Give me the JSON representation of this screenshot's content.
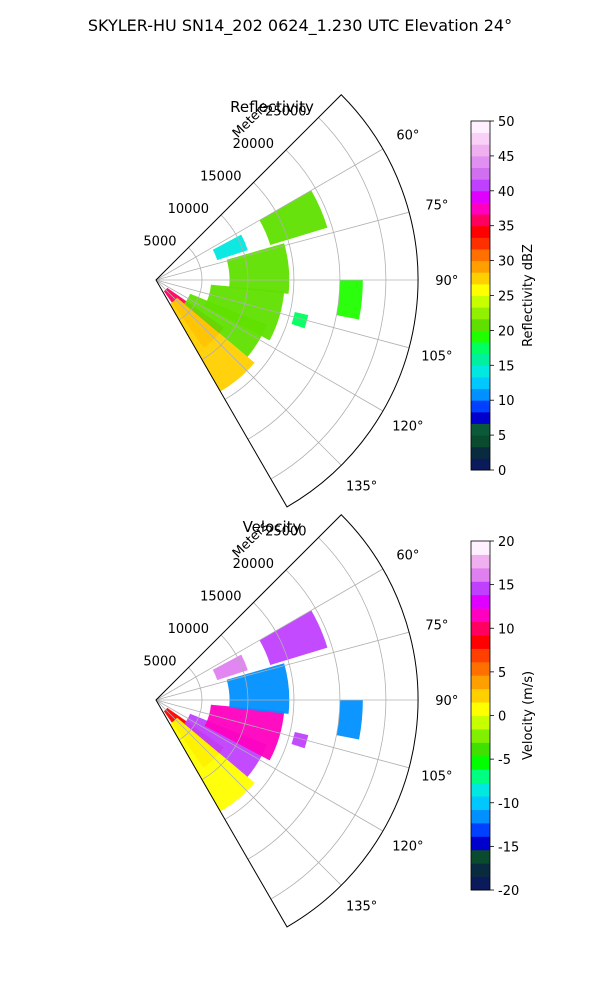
{
  "figure": {
    "title": "SKYLER-HU  SN14_202  0624_1.230 UTC Elevation 24°"
  },
  "chart_data": [
    {
      "type": "heatmap",
      "subtype": "polar-sector",
      "title": "Reflectivity",
      "range_label": "Meters",
      "range_ticks": [
        5000,
        10000,
        15000,
        20000,
        25000
      ],
      "range_max": 28500,
      "azimuth_range_deg": [
        45,
        150
      ],
      "azimuth_ticks": [
        60,
        75,
        90,
        105,
        120,
        135
      ],
      "grid": true,
      "colorbar": {
        "label": "Reflectivity dBZ",
        "min": 0,
        "max": 50,
        "ticks": [
          0,
          5,
          10,
          15,
          20,
          25,
          30,
          35,
          40,
          45,
          50
        ],
        "colors": [
          "#0b1a5a",
          "#0a2a40",
          "#0a4a2e",
          "#0a5a3a",
          "#0000cc",
          "#0040ff",
          "#0090ff",
          "#00c8ff",
          "#00e8e0",
          "#00f0a0",
          "#00ff60",
          "#20ff00",
          "#60e000",
          "#90f000",
          "#c8ff00",
          "#ffff00",
          "#ffd000",
          "#ffa000",
          "#ff7000",
          "#ff3000",
          "#ff0000",
          "#ff0060",
          "#ff00c0",
          "#e000ff",
          "#c040ff",
          "#d070f0",
          "#e090f0",
          "#f0b0f0",
          "#f8d0f8",
          "#fff0ff"
        ]
      },
      "echoes": [
        {
          "az_from": 125,
          "az_to": 145,
          "r_from": 1500,
          "r_to": 9000,
          "value": 36
        },
        {
          "az_from": 130,
          "az_to": 150,
          "r_from": 3000,
          "r_to": 14000,
          "value": 27
        },
        {
          "az_from": 112,
          "az_to": 130,
          "r_from": 4000,
          "r_to": 13000,
          "value": 21
        },
        {
          "az_from": 95,
          "az_to": 118,
          "r_from": 6000,
          "r_to": 14000,
          "value": 20
        },
        {
          "az_from": 74,
          "az_to": 96,
          "r_from": 8000,
          "r_to": 14500,
          "value": 21
        },
        {
          "az_from": 60,
          "az_to": 73,
          "r_from": 13000,
          "r_to": 19500,
          "value": 20
        },
        {
          "az_from": 62,
          "az_to": 72,
          "r_from": 7000,
          "r_to": 10500,
          "value": 14
        },
        {
          "az_from": 90,
          "az_to": 101,
          "r_from": 20000,
          "r_to": 22500,
          "value": 19
        },
        {
          "az_from": 103,
          "az_to": 108,
          "r_from": 15500,
          "r_to": 17000,
          "value": 18
        }
      ]
    },
    {
      "type": "heatmap",
      "subtype": "polar-sector",
      "title": "Velocity",
      "range_label": "Meters",
      "range_ticks": [
        5000,
        10000,
        15000,
        20000,
        25000
      ],
      "range_max": 28500,
      "azimuth_range_deg": [
        45,
        150
      ],
      "azimuth_ticks": [
        60,
        75,
        90,
        105,
        120,
        135
      ],
      "grid": true,
      "colorbar": {
        "label": "Velocity (m/s)",
        "min": -20,
        "max": 20,
        "ticks": [
          -20,
          -15,
          -10,
          -5,
          0,
          5,
          10,
          15,
          20
        ],
        "colors": [
          "#0b1a5a",
          "#0a2a40",
          "#0a4a2e",
          "#0000cc",
          "#0040ff",
          "#0090ff",
          "#00c8ff",
          "#00e8e0",
          "#00ff80",
          "#00ff00",
          "#40e000",
          "#80f000",
          "#c8ff00",
          "#ffff00",
          "#ffd000",
          "#ffa000",
          "#ff7000",
          "#ff4000",
          "#ff0000",
          "#ff0060",
          "#ff00c0",
          "#e000ff",
          "#c040ff",
          "#e080f0",
          "#f0b0f0",
          "#fff0ff"
        ]
      },
      "echoes": [
        {
          "az_from": 125,
          "az_to": 145,
          "r_from": 1500,
          "r_to": 9000,
          "value": 8
        },
        {
          "az_from": 130,
          "az_to": 150,
          "r_from": 3000,
          "r_to": 14000,
          "value": 1
        },
        {
          "az_from": 112,
          "az_to": 130,
          "r_from": 4000,
          "r_to": 13000,
          "value": 14
        },
        {
          "az_from": 95,
          "az_to": 118,
          "r_from": 6000,
          "r_to": 14000,
          "value": 11
        },
        {
          "az_from": 74,
          "az_to": 96,
          "r_from": 8000,
          "r_to": 14500,
          "value": -12
        },
        {
          "az_from": 60,
          "az_to": 73,
          "r_from": 13000,
          "r_to": 19500,
          "value": 14
        },
        {
          "az_from": 62,
          "az_to": 72,
          "r_from": 7000,
          "r_to": 10500,
          "value": 16
        },
        {
          "az_from": 90,
          "az_to": 101,
          "r_from": 20000,
          "r_to": 22500,
          "value": -12
        },
        {
          "az_from": 103,
          "az_to": 108,
          "r_from": 15500,
          "r_to": 17000,
          "value": 14
        }
      ]
    }
  ]
}
